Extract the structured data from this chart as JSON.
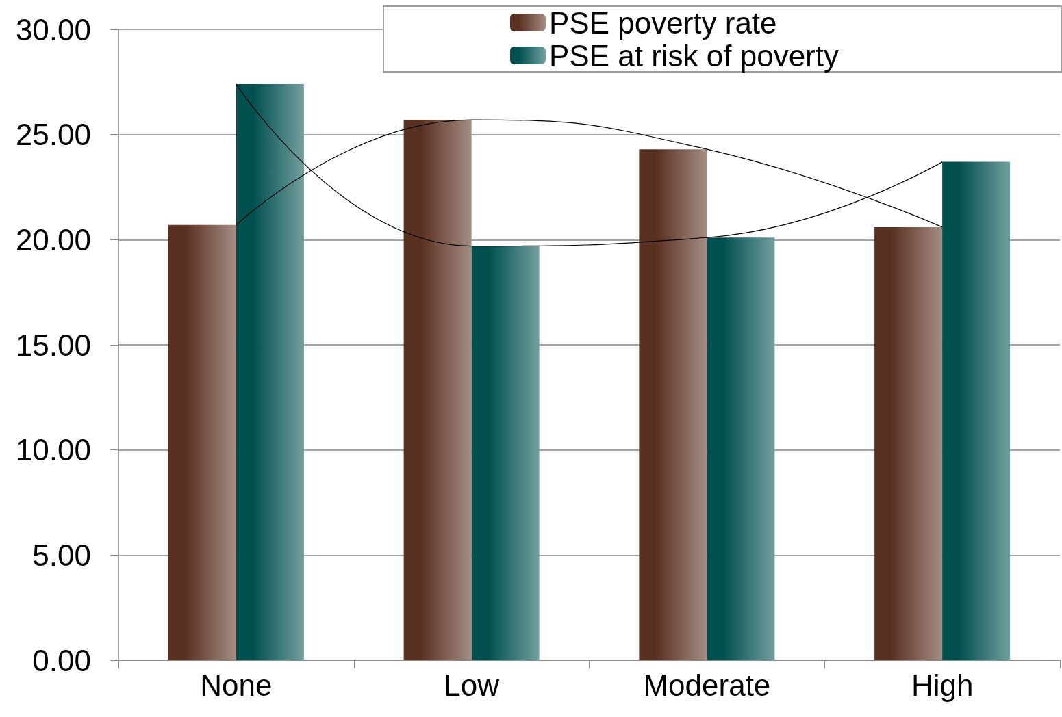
{
  "chart_data": {
    "type": "bar",
    "categories": [
      "None",
      "Low",
      "Moderate",
      "High"
    ],
    "series": [
      {
        "name": "PSE poverty rate",
        "color": "#5a3020",
        "values": [
          20.7,
          25.7,
          24.3,
          20.6
        ]
      },
      {
        "name": "PSE at risk of poverty",
        "color": "#00504f",
        "values": [
          27.4,
          19.7,
          20.1,
          23.7
        ]
      },
      {
        "type": "line",
        "color": "#000000",
        "values": [
          20.7,
          25.7,
          24.3,
          20.6
        ]
      },
      {
        "type": "line",
        "color": "#000000",
        "values": [
          27.4,
          19.7,
          20.1,
          23.7
        ]
      }
    ],
    "ylim": [
      0,
      30
    ],
    "yticks": [
      {
        "value": 0,
        "label": "0.00"
      },
      {
        "value": 5,
        "label": "5.00"
      },
      {
        "value": 10,
        "label": "10.00"
      },
      {
        "value": 15,
        "label": "15.00"
      },
      {
        "value": 20,
        "label": "20.00"
      },
      {
        "value": 25,
        "label": "25.00"
      },
      {
        "value": 30,
        "label": "30.00"
      }
    ],
    "grid": "y",
    "legend": "top right",
    "marker": "none"
  }
}
